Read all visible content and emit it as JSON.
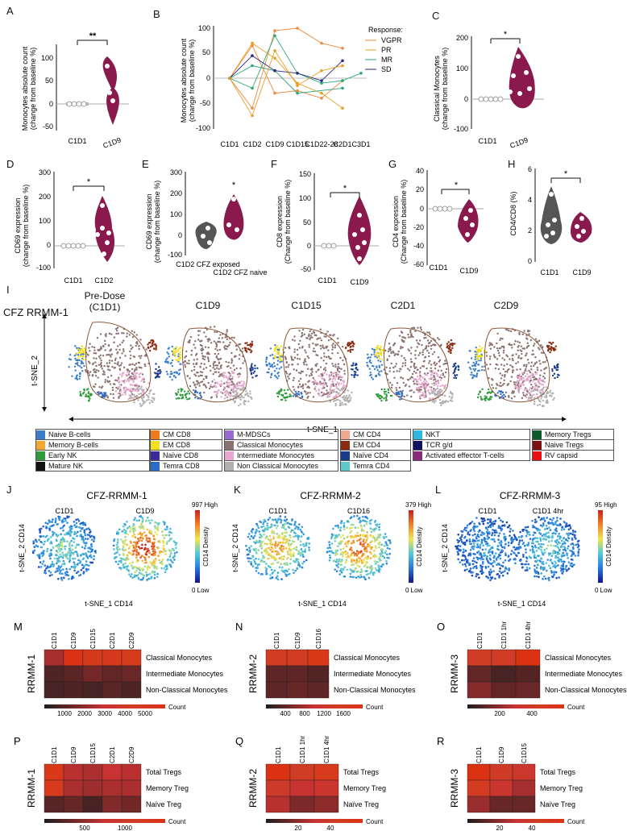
{
  "panels": {
    "A": {
      "label": "A",
      "ylabel": "Monocytes absolute count",
      "ylabel2": "(change from baseline %)",
      "yticks": [
        "100",
        "50",
        "0",
        "-50"
      ],
      "xcats": [
        "C1D1",
        "C1D9"
      ],
      "sig": "**"
    },
    "B": {
      "label": "B",
      "ylabel": "Monocytes absolute count",
      "ylabel2": "(change from baseline %)",
      "yticks": [
        "100",
        "50",
        "0",
        "-50",
        "-100"
      ],
      "xcats": [
        "C1D1",
        "C1D2",
        "C1D9",
        "C1D15",
        "C1D22-28",
        "C2D1",
        "C3D1"
      ],
      "legend_title": "Response:",
      "legend": [
        {
          "name": "VGPR",
          "color": "#f08a3c"
        },
        {
          "name": "PR",
          "color": "#e8a020"
        },
        {
          "name": "MR",
          "color": "#2aa87a"
        },
        {
          "name": "SD",
          "color": "#2a2a8a"
        }
      ]
    },
    "C": {
      "label": "C",
      "ylabel": "Classical Monocytes",
      "ylabel2": "(change from baseline %)",
      "yticks": [
        "200",
        "100",
        "0",
        "-100"
      ],
      "xcats": [
        "C1D1",
        "C1D9"
      ],
      "sig": "*"
    },
    "D": {
      "label": "D",
      "ylabel": "CD69 expression",
      "ylabel2": "(change from baseline %)",
      "yticks": [
        "300",
        "200",
        "100",
        "0",
        "-100"
      ],
      "xcats": [
        "C1D1",
        "C1D2"
      ],
      "sig": "*"
    },
    "E": {
      "label": "E",
      "ylabel": "CD69 expression",
      "ylabel2": "(change from baseline %)",
      "yticks": [
        "300",
        "200",
        "100",
        "0",
        "-100"
      ],
      "xcats": [
        "C1D2 CFZ exposed",
        "C1D2 CFZ naive"
      ],
      "sig": "*"
    },
    "F": {
      "label": "F",
      "ylabel": "CD8 expression",
      "ylabel2": "(Change from baseline %)",
      "yticks": [
        "150",
        "100",
        "50",
        "0",
        "-50"
      ],
      "xcats": [
        "C1D1",
        "C1D9"
      ],
      "sig": "*"
    },
    "G": {
      "label": "G",
      "ylabel": "CD4 expression",
      "ylabel2": "(Change from baseline %)",
      "yticks": [
        "40",
        "20",
        "0",
        "-20",
        "-40",
        "-60"
      ],
      "xcats": [
        "C1D1",
        "C1D9"
      ],
      "sig": "*"
    },
    "H": {
      "label": "H",
      "ylabel": "CD4/CD8 (%)",
      "ylabel2": "",
      "yticks": [
        "6",
        "4",
        "2",
        "0"
      ],
      "xcats": [
        "C1D1",
        "C1D9"
      ],
      "sig": "*"
    }
  },
  "panel_I": {
    "label": "I",
    "row_title": "CFZ RRMM-1",
    "timepoints": [
      "Pre-Dose\n(C1D1)",
      "C1D9",
      "C1D15",
      "C2D1",
      "C2D9"
    ],
    "ylabel": "t-SNE_2",
    "xlabel": "t-SNE_1",
    "legend": [
      [
        {
          "name": "Naive B-cells",
          "color": "#3a7ecb"
        },
        {
          "name": "Memory B-cells",
          "color": "#f0a830"
        },
        {
          "name": "Early NK",
          "color": "#2e9a3a"
        },
        {
          "name": "Mature NK",
          "color": "#111111"
        }
      ],
      [
        {
          "name": "CM CD8",
          "color": "#f07a1a"
        },
        {
          "name": "EM CD8",
          "color": "#f5e020"
        },
        {
          "name": "Naïve CD8",
          "color": "#3a2a9a"
        },
        {
          "name": "Temra CD8",
          "color": "#2a6ac8"
        }
      ],
      [
        {
          "name": "M-MDSCs",
          "color": "#9a6ad0"
        },
        {
          "name": "Classical Monocytes",
          "color": "#8a7070"
        },
        {
          "name": "Intermediate Monocytes",
          "color": "#e8a8d0"
        },
        {
          "name": "Non Classical Monocytes",
          "color": "#b0b0b0"
        }
      ],
      [
        {
          "name": "CM CD4",
          "color": "#f0a890"
        },
        {
          "name": "EM CD4",
          "color": "#8a2a10"
        },
        {
          "name": "Naïve CD4",
          "color": "#1a3a8a"
        },
        {
          "name": "Temra CD4",
          "color": "#60c8c8"
        }
      ],
      [
        {
          "name": "NKT",
          "color": "#30b8e0"
        },
        {
          "name": "TCR g/d",
          "color": "#101060"
        },
        {
          "name": "Activated effector T-cells",
          "color": "#8a2a7a"
        }
      ],
      [
        {
          "name": "Memory Tregs",
          "color": "#0a5a2a"
        },
        {
          "name": "Naive Tregs",
          "color": "#7a1010"
        },
        {
          "name": "RV capsid",
          "color": "#e81010"
        }
      ]
    ]
  },
  "density": {
    "J": {
      "label": "J",
      "title": "CFZ-RRMM-1",
      "left": "C1D1",
      "right": "C1D9",
      "high": "997 High",
      "low": "0 Low",
      "cbar": "CD14 Density",
      "ylabel": "t-SNE_2 CD14",
      "xlabel": "t-SNE_1 CD14"
    },
    "K": {
      "label": "K",
      "title": "CFZ-RRMM-2",
      "left": "C1D1",
      "right": "C1D16",
      "high": "379 High",
      "low": "0 Low",
      "cbar": "CD14 Density",
      "ylabel": "t-SNE_2 CD14",
      "xlabel": "t-SNE_1 CD14"
    },
    "L": {
      "label": "L",
      "title": "CFZ-RRMM-3",
      "left": "C1D1",
      "right": "C1D1 4hr",
      "high": "95 High",
      "low": "0 Low",
      "cbar": "CD14 Density",
      "ylabel": "t-SNE_2 CD14",
      "xlabel": "t-SNE_1 CD14"
    }
  },
  "chart_data": [
    {
      "type": "heatmap",
      "panel": "M",
      "ylabel": "RRMM-1",
      "columns": [
        "C1D1",
        "C1D9",
        "C1D15",
        "C2D1",
        "C2D9"
      ],
      "rows": [
        "Classical Monocytes",
        "Intermediate Monocytes",
        "Non-Classical Monocytes"
      ],
      "values": [
        [
          2000,
          5000,
          4300,
          4300,
          4200
        ],
        [
          700,
          900,
          1300,
          1000,
          1100
        ],
        [
          600,
          700,
          600,
          900,
          700
        ]
      ],
      "scale_ticks": [
        "1000",
        "2000",
        "3000",
        "4000",
        "5000"
      ],
      "scale_label": "Count",
      "range": [
        0,
        5000
      ]
    },
    {
      "type": "heatmap",
      "panel": "N",
      "ylabel": "RRMM-2",
      "columns": [
        "C1D1",
        "C1D9",
        "C1D16"
      ],
      "rows": [
        "Classical Monocytes",
        "Intermediate Monocytes",
        "Non-Classical Monocytes"
      ],
      "values": [
        [
          1200,
          1200,
          1500
        ],
        [
          300,
          300,
          250
        ],
        [
          300,
          350,
          300
        ]
      ],
      "scale_ticks": [
        "400",
        "800",
        "1200",
        "1600"
      ],
      "scale_label": "Count",
      "range": [
        0,
        1600
      ]
    },
    {
      "type": "heatmap",
      "panel": "O",
      "ylabel": "RRMM-3",
      "columns": [
        "C1D1",
        "C1D1 1hr",
        "C1D1 4hr"
      ],
      "rows": [
        "Classical Monocytes",
        "Intermediate Monocytes",
        "Non-Classical Monocytes"
      ],
      "values": [
        [
          350,
          350,
          500
        ],
        [
          100,
          60,
          80
        ],
        [
          150,
          100,
          110
        ]
      ],
      "scale_ticks": [
        "200",
        "400"
      ],
      "scale_label": "Count",
      "range": [
        0,
        500
      ]
    },
    {
      "type": "heatmap",
      "panel": "P",
      "ylabel": "RRMM-1",
      "columns": [
        "C1D1",
        "C1D9",
        "C1D15",
        "C2D1",
        "C2D9"
      ],
      "rows": [
        "Total Tregs",
        "Memory Treg",
        "Naïve Treg"
      ],
      "values": [
        [
          1100,
          550,
          500,
          600,
          550
        ],
        [
          1050,
          500,
          450,
          500,
          500
        ],
        [
          200,
          250,
          150,
          350,
          300
        ]
      ],
      "scale_ticks": [
        "500",
        "1000"
      ],
      "scale_label": "Count",
      "range": [
        0,
        1200
      ]
    },
    {
      "type": "heatmap",
      "panel": "Q",
      "ylabel": "RRMM-2",
      "columns": [
        "C1D1",
        "C1D1 1hr",
        "C1D1 4hr"
      ],
      "rows": [
        "Total Tregs",
        "Memory Treg",
        "Naïve Treg"
      ],
      "values": [
        [
          55,
          40,
          48
        ],
        [
          35,
          28,
          30
        ],
        [
          25,
          15,
          18
        ]
      ],
      "scale_ticks": [
        "20",
        "40"
      ],
      "scale_label": "Count",
      "range": [
        0,
        55
      ]
    },
    {
      "type": "heatmap",
      "panel": "R",
      "ylabel": "RRMM-3",
      "columns": [
        "C1D1",
        "C1D9",
        "C1D15"
      ],
      "rows": [
        "Total Tregs",
        "Memory Treg",
        "Naïve Treg"
      ],
      "values": [
        [
          55,
          38,
          32
        ],
        [
          42,
          30,
          22
        ],
        [
          20,
          12,
          12
        ]
      ],
      "scale_ticks": [
        "20",
        "40"
      ],
      "scale_label": "Count",
      "range": [
        0,
        55
      ]
    }
  ]
}
